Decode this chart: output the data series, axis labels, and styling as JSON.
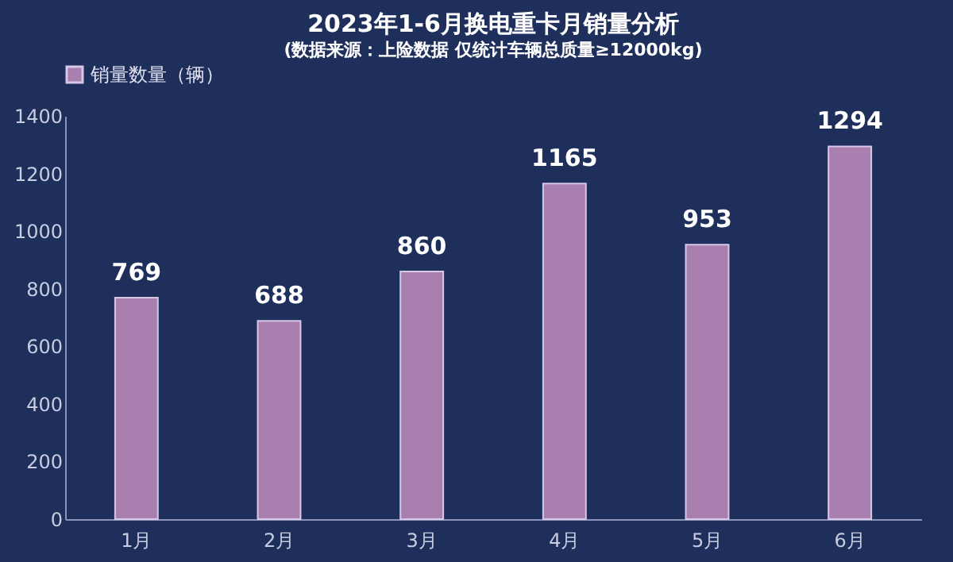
{
  "chart_data": {
    "type": "bar",
    "title": "2023年1-6月换电重卡月销量分析",
    "subtitle": "(数据来源：上险数据 仅统计车辆总质量≥12000kg)",
    "categories": [
      "1月",
      "2月",
      "3月",
      "4月",
      "5月",
      "6月"
    ],
    "series": [
      {
        "name": "销量数量（辆）",
        "color": "#a87fae",
        "values": [
          769,
          688,
          860,
          1165,
          953,
          1294
        ]
      }
    ],
    "ylim": [
      0,
      1400
    ],
    "yticks": [
      0,
      200,
      400,
      600,
      800,
      1000,
      1200,
      1400
    ],
    "grid": false,
    "legend": "top",
    "data_labels": true
  }
}
